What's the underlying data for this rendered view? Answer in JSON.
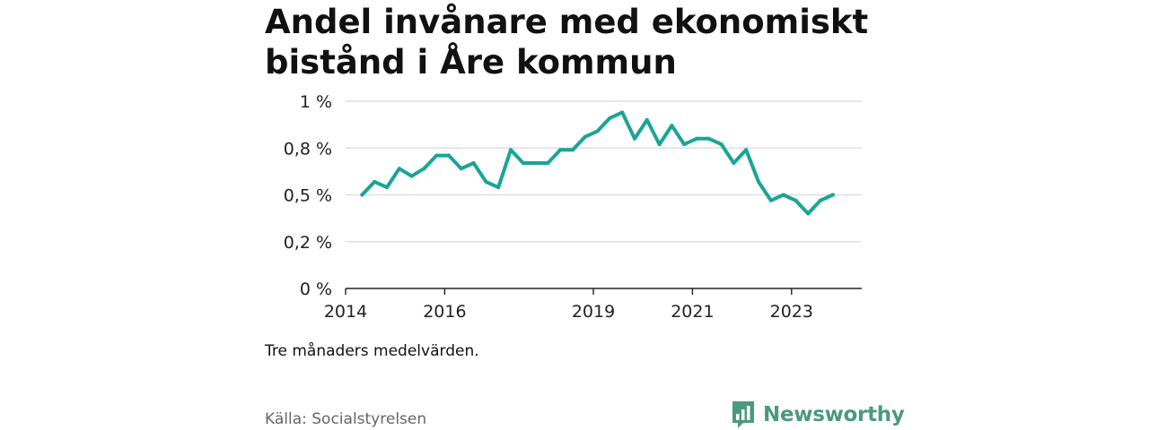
{
  "header": {
    "title": "Andel invånare med ekonomiskt bistånd i Åre kommun"
  },
  "footer": {
    "note": "Tre månaders medelvärden.",
    "source": "Källa: Socialstyrelsen",
    "brand": "Newsworthy",
    "brand_color": "#4a9a7b",
    "brand_icon": "bar-chart-speech-bubble-icon"
  },
  "chart_data": {
    "type": "line",
    "title": "Andel invånare med ekonomiskt bistånd i Åre kommun",
    "xlabel": "",
    "ylabel": "",
    "ylim": [
      0,
      1
    ],
    "xlim": [
      "2014-01",
      "2024-06"
    ],
    "yticks": [
      0,
      0.25,
      0.5,
      0.75,
      1
    ],
    "ytick_labels": [
      "0 %",
      "0,2 %",
      "0,5 %",
      "0,8 %",
      "1 %"
    ],
    "xticks": [
      "2014-01",
      "2016-01",
      "2019-01",
      "2021-01",
      "2023-01"
    ],
    "xtick_labels": [
      "2014",
      "2016",
      "2019",
      "2021",
      "2023"
    ],
    "grid": true,
    "series": [
      {
        "color": "#19a596",
        "x": [
          "2014-05",
          "2014-08",
          "2014-11",
          "2015-02",
          "2015-05",
          "2015-08",
          "2015-11",
          "2016-02",
          "2016-05",
          "2016-08",
          "2016-11",
          "2017-02",
          "2017-05",
          "2017-08",
          "2017-11",
          "2018-02",
          "2018-05",
          "2018-08",
          "2018-11",
          "2019-02",
          "2019-05",
          "2019-08",
          "2019-11",
          "2020-02",
          "2020-05",
          "2020-08",
          "2020-11",
          "2021-02",
          "2021-05",
          "2021-08",
          "2021-11",
          "2022-02",
          "2022-05",
          "2022-08",
          "2022-11",
          "2023-02",
          "2023-05",
          "2023-08",
          "2023-11"
        ],
        "values": [
          0.5,
          0.57,
          0.54,
          0.64,
          0.6,
          0.64,
          0.71,
          0.71,
          0.64,
          0.67,
          0.57,
          0.54,
          0.74,
          0.67,
          0.67,
          0.67,
          0.74,
          0.74,
          0.81,
          0.84,
          0.91,
          0.94,
          0.8,
          0.9,
          0.77,
          0.87,
          0.77,
          0.8,
          0.8,
          0.77,
          0.67,
          0.74,
          0.57,
          0.47,
          0.5,
          0.47,
          0.4,
          0.47,
          0.5
        ]
      }
    ]
  }
}
